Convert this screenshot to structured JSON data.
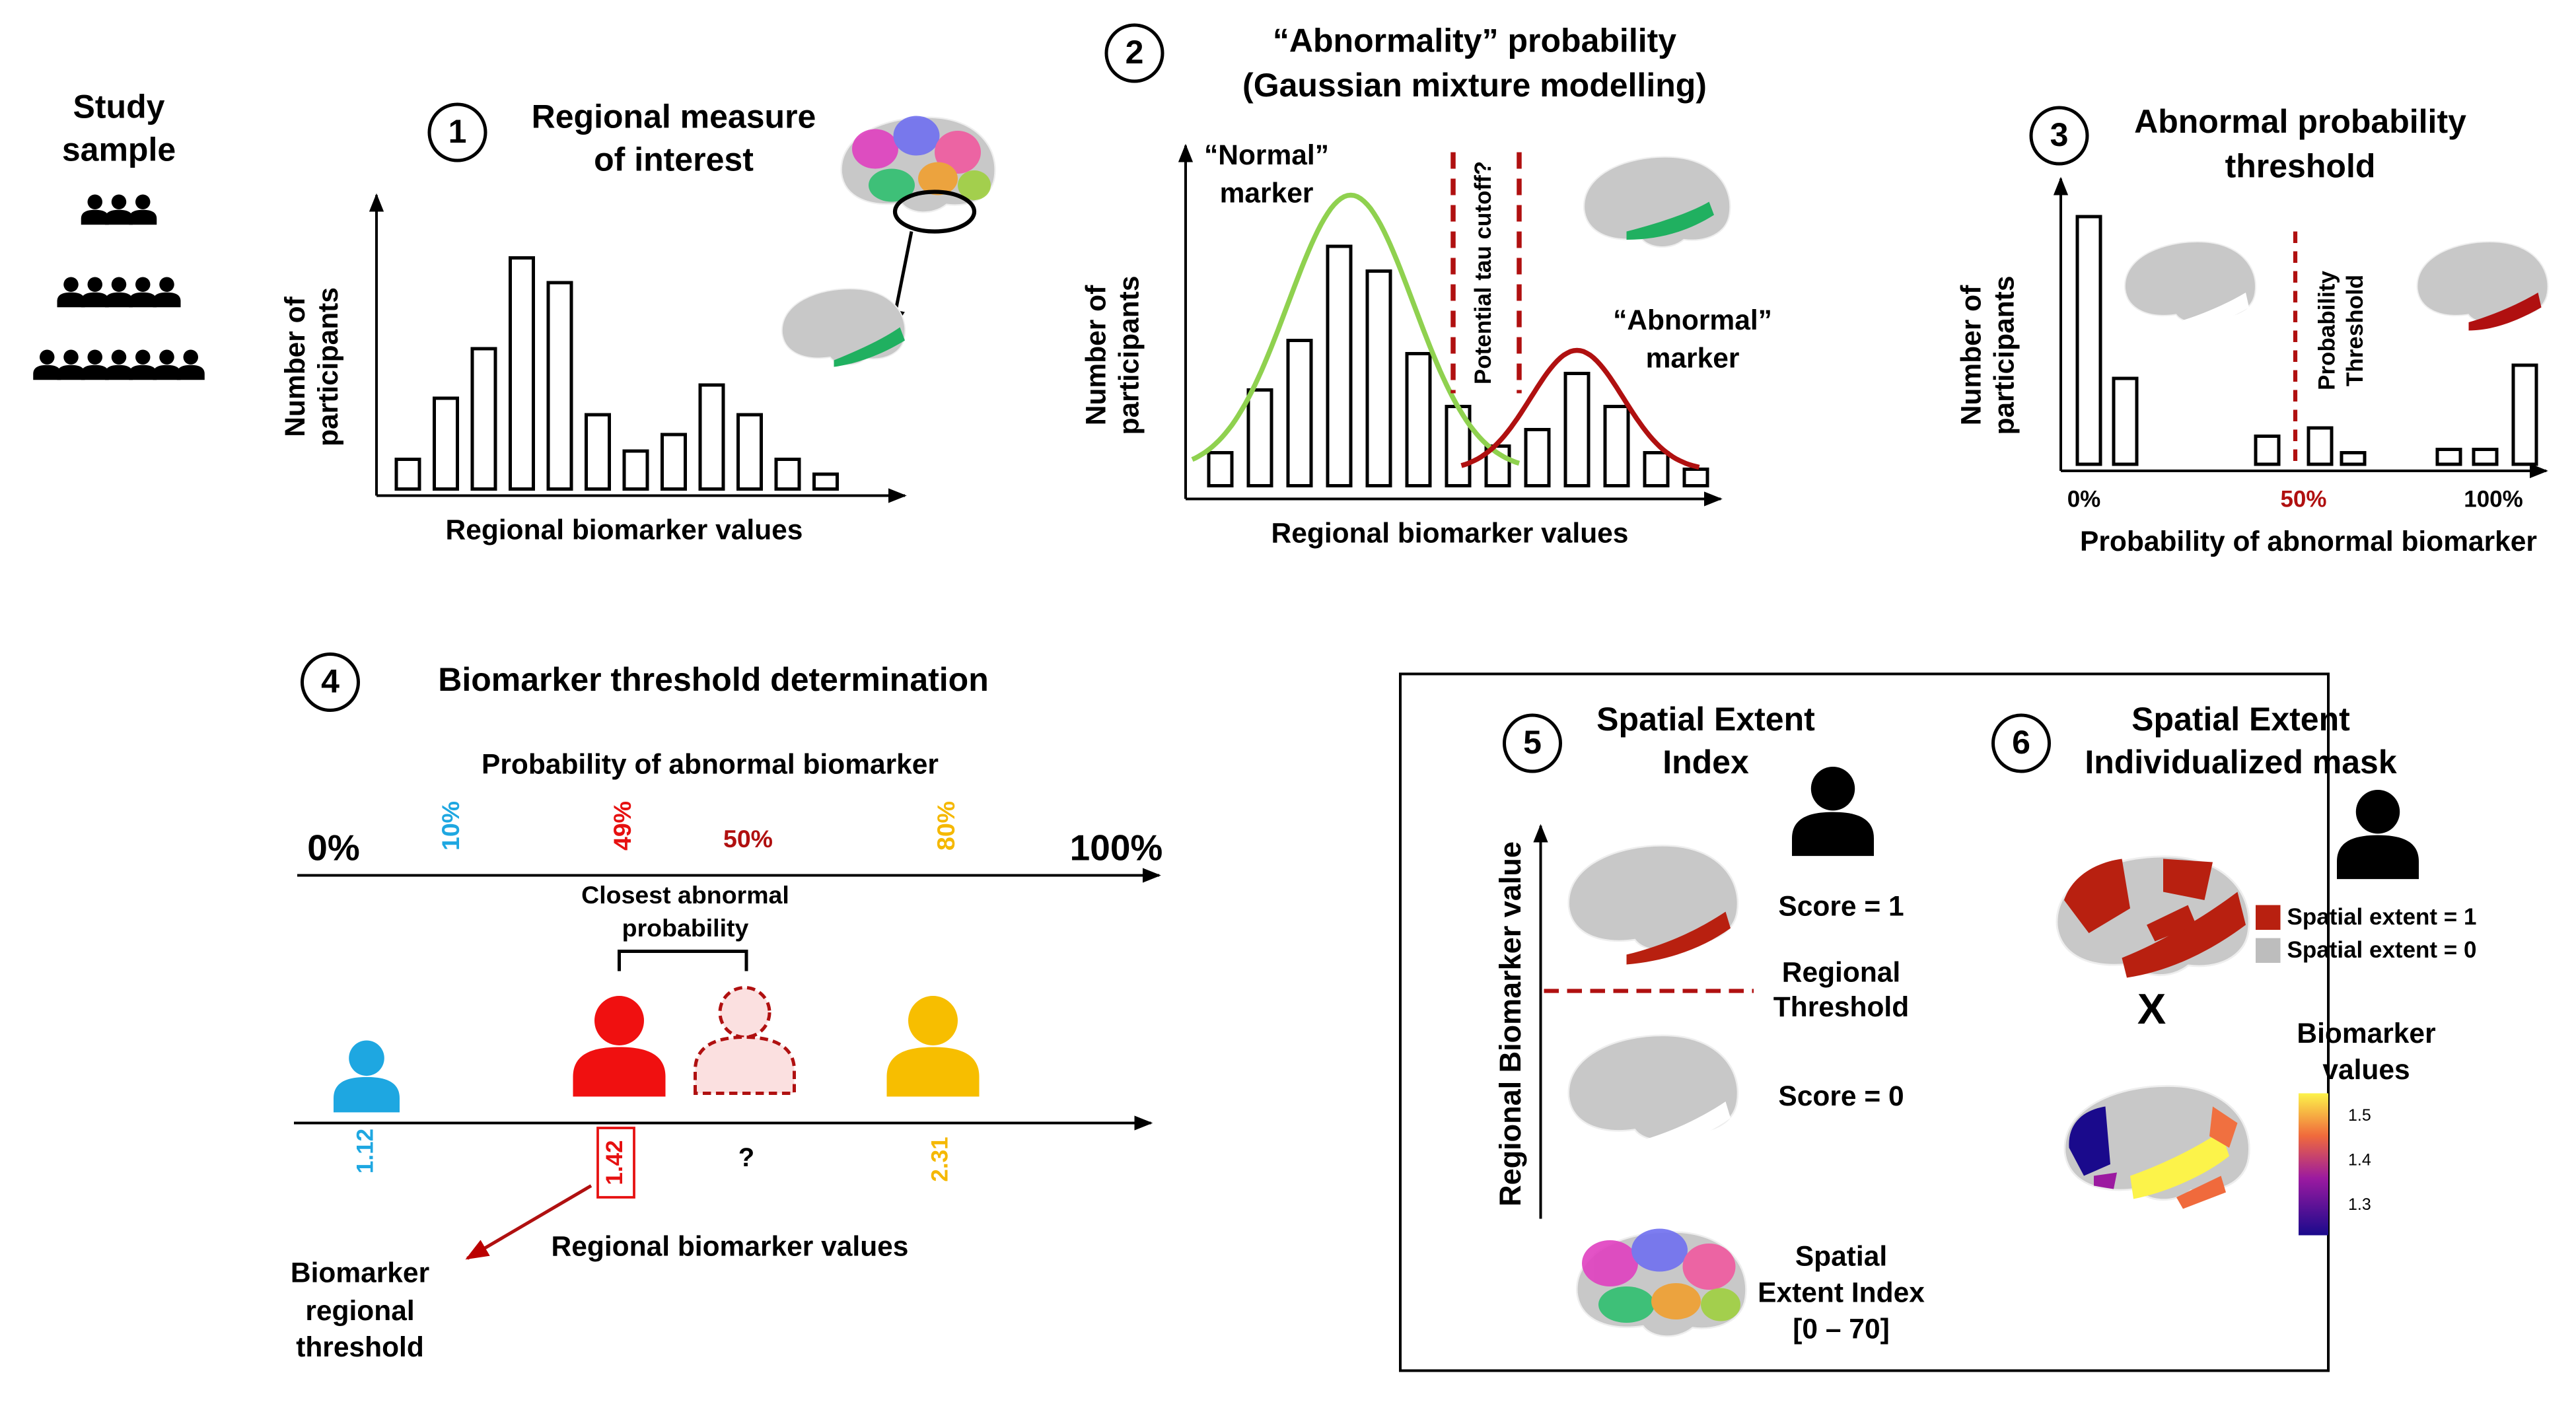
{
  "study_sample": [
    "Study",
    "sample"
  ],
  "panel1": {
    "number": "1",
    "title": [
      "Regional measure",
      "of interest"
    ],
    "y_label": [
      "Number of",
      "participants"
    ],
    "x_label": "Regional biomarker values"
  },
  "panel2": {
    "number": "2",
    "title": [
      "“Abnormality” probability",
      "(Gaussian mixture modelling)"
    ],
    "normal": [
      "“Normal”",
      "marker"
    ],
    "abnormal": [
      "“Abnormal”",
      "marker"
    ],
    "cutoff": "Potential tau cutoff?",
    "y_label": [
      "Number of",
      "participants"
    ],
    "x_label": "Regional biomarker values"
  },
  "panel3": {
    "number": "3",
    "title": [
      "Abnormal probability",
      "threshold"
    ],
    "y_label": [
      "Number of",
      "participants"
    ],
    "threshold": [
      "Probability",
      "Threshold"
    ],
    "ticks": [
      "0%",
      "50%",
      "100%"
    ],
    "x_label": "Probability of abnormal biomarker"
  },
  "panel4": {
    "number": "4",
    "title": "Biomarker threshold determination",
    "axis_title": "Probability of abnormal biomarker",
    "ends": [
      "0%",
      "100%"
    ],
    "probs": [
      "10%",
      "49%",
      "50%",
      "80%"
    ],
    "closest": [
      "Closest abnormal",
      "probability"
    ],
    "values": [
      "1.12",
      "1.42",
      "?",
      "2.31"
    ],
    "x_label": "Regional biomarker values",
    "threshold": [
      "Biomarker",
      "regional",
      "threshold"
    ]
  },
  "panel5": {
    "number": "5",
    "title": [
      "Spatial Extent",
      "Index"
    ],
    "y_label": "Regional Biomarker value",
    "score1": "Score = 1",
    "regional": [
      "Regional",
      "Threshold"
    ],
    "score0": "Score = 0",
    "index": [
      "Spatial",
      "Extent Index",
      "[0 – 70]"
    ]
  },
  "panel6": {
    "number": "6",
    "title": [
      "Spatial Extent",
      "Individualized mask"
    ],
    "legend": [
      "Spatial extent = 1",
      "Spatial extent = 0"
    ],
    "times": "X",
    "colorbar_title": [
      "Biomarker",
      "values"
    ],
    "colorbar_ticks": [
      "1.5",
      "1.4",
      "1.3"
    ]
  }
}
